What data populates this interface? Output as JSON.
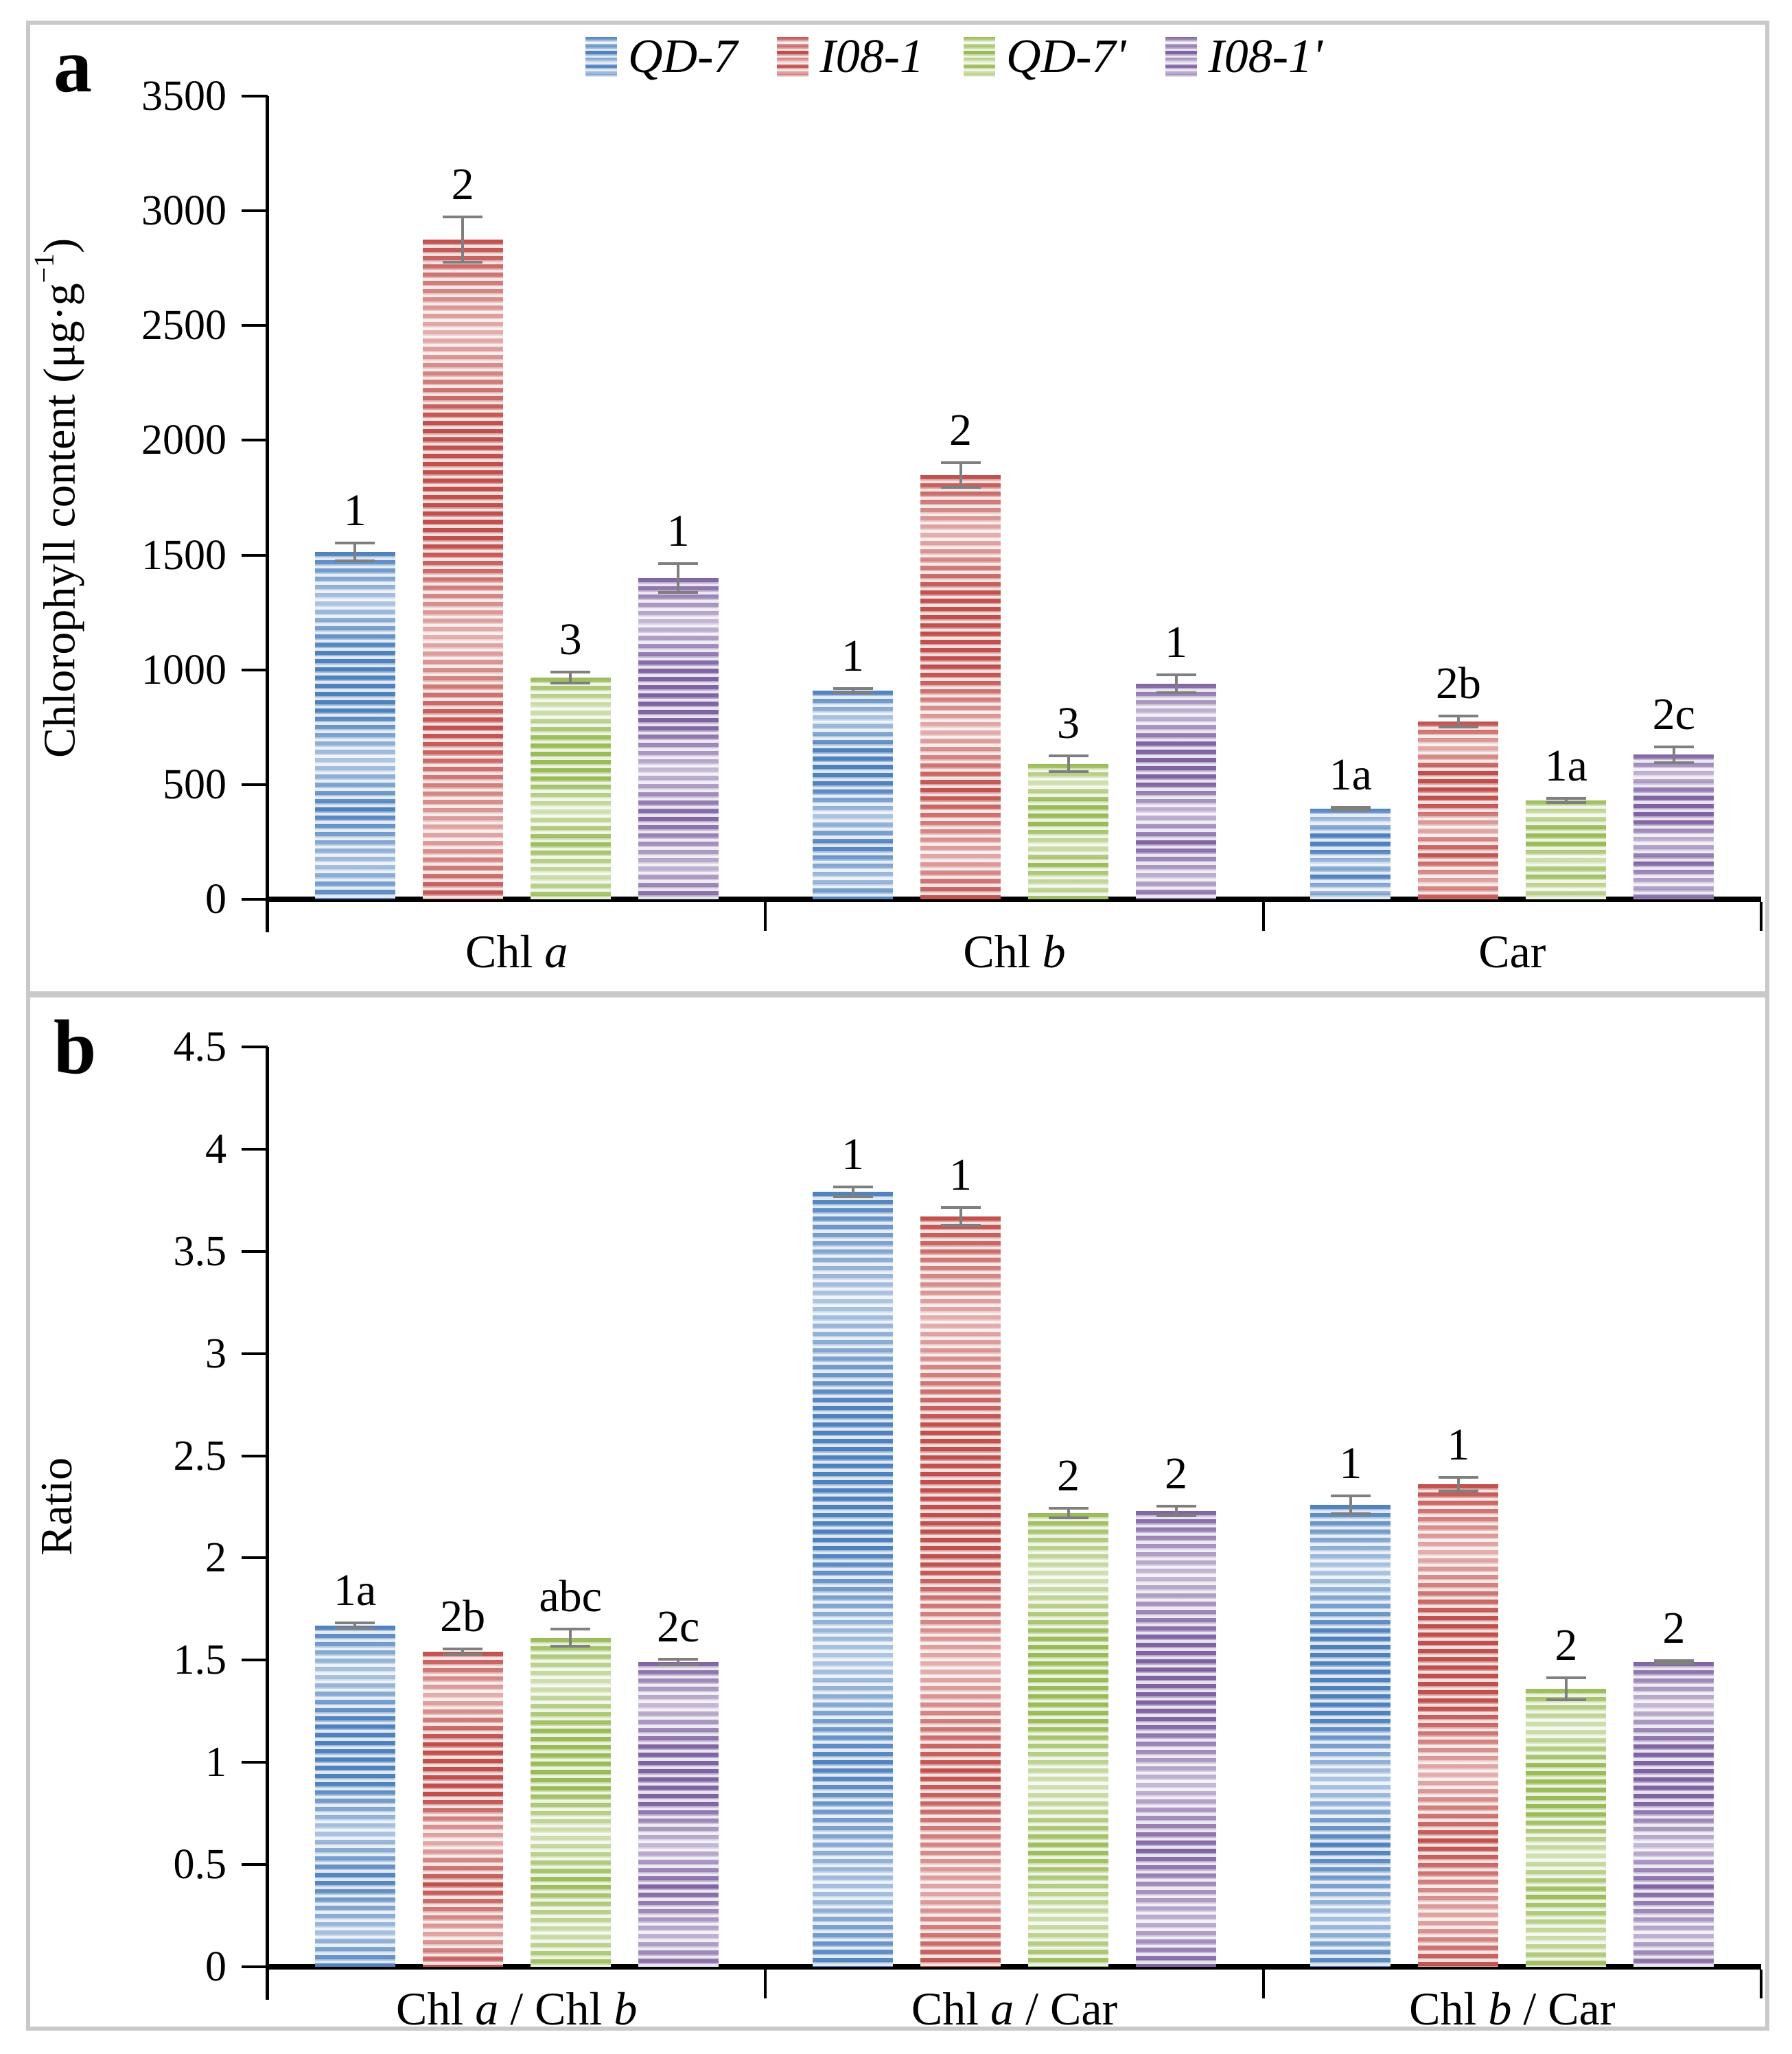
{
  "figure": {
    "background": "#ffffff",
    "frame_color": "#c9c9c9",
    "axis_color": "#000000",
    "error_bar_color": "#7f7f7f"
  },
  "panels": {
    "a": {
      "letter": "a",
      "y_title_pre": "Chlorophyll content (μg·g",
      "y_title_sup": "−1",
      "y_title_post": ")"
    },
    "b": {
      "letter": "b",
      "y_title": "Ratio"
    }
  },
  "legend": {
    "items": [
      {
        "label": "QD-7",
        "color": "#4f81bd"
      },
      {
        "label": "I08-1",
        "color": "#c0504d"
      },
      {
        "label": "QD-7'",
        "color": "#9bbb59"
      },
      {
        "label": "I08-1'",
        "color": "#8064a2"
      }
    ]
  },
  "chart_data": [
    {
      "type": "bar",
      "panel": "a",
      "ylabel": "Chlorophyll content (μg·g⁻¹)",
      "ylim": [
        0,
        3500
      ],
      "ytick_step": 500,
      "grid": false,
      "legend_position": "top-center",
      "categories": [
        "Chl a",
        "Chl b",
        "Car"
      ],
      "series": [
        {
          "name": "QD-7",
          "color": "#4f81bd",
          "values": [
            1515,
            910,
            395
          ],
          "errors": [
            45,
            15,
            10
          ],
          "sig_labels": [
            "1",
            "1",
            "1a"
          ]
        },
        {
          "name": "I08-1",
          "color": "#c0504d",
          "values": [
            2875,
            1850,
            775
          ],
          "errors": [
            105,
            60,
            30
          ],
          "sig_labels": [
            "2",
            "2",
            "2b"
          ]
        },
        {
          "name": "QD-7'",
          "color": "#9bbb59",
          "values": [
            965,
            590,
            430
          ],
          "errors": [
            30,
            40,
            15
          ],
          "sig_labels": [
            "3",
            "3",
            "1a"
          ]
        },
        {
          "name": "I08-1'",
          "color": "#8064a2",
          "values": [
            1400,
            940,
            630
          ],
          "errors": [
            70,
            45,
            40
          ],
          "sig_labels": [
            "1",
            "1",
            "2c"
          ]
        }
      ]
    },
    {
      "type": "bar",
      "panel": "b",
      "ylabel": "Ratio",
      "ylim": [
        0,
        4.5
      ],
      "ytick_step": 0.5,
      "grid": false,
      "categories": [
        "Chl a / Chl b",
        "Chl a / Car",
        "Chl b / Car"
      ],
      "series": [
        {
          "name": "QD-7",
          "color": "#4f81bd",
          "values": [
            1.67,
            3.79,
            2.26
          ],
          "errors": [
            0.02,
            0.03,
            0.05
          ],
          "sig_labels": [
            "1a",
            "1",
            "1"
          ]
        },
        {
          "name": "I08-1",
          "color": "#c0504d",
          "values": [
            1.54,
            3.67,
            2.36
          ],
          "errors": [
            0.02,
            0.05,
            0.04
          ],
          "sig_labels": [
            "2b",
            "1",
            "1"
          ]
        },
        {
          "name": "QD-7'",
          "color": "#9bbb59",
          "values": [
            1.61,
            2.22,
            1.36
          ],
          "errors": [
            0.05,
            0.03,
            0.06
          ],
          "sig_labels": [
            "abc",
            "2",
            "2"
          ]
        },
        {
          "name": "I08-1'",
          "color": "#8064a2",
          "values": [
            1.49,
            2.23,
            1.49
          ],
          "errors": [
            0.02,
            0.03,
            0.01
          ],
          "sig_labels": [
            "2c",
            "2",
            "2"
          ]
        }
      ]
    }
  ]
}
